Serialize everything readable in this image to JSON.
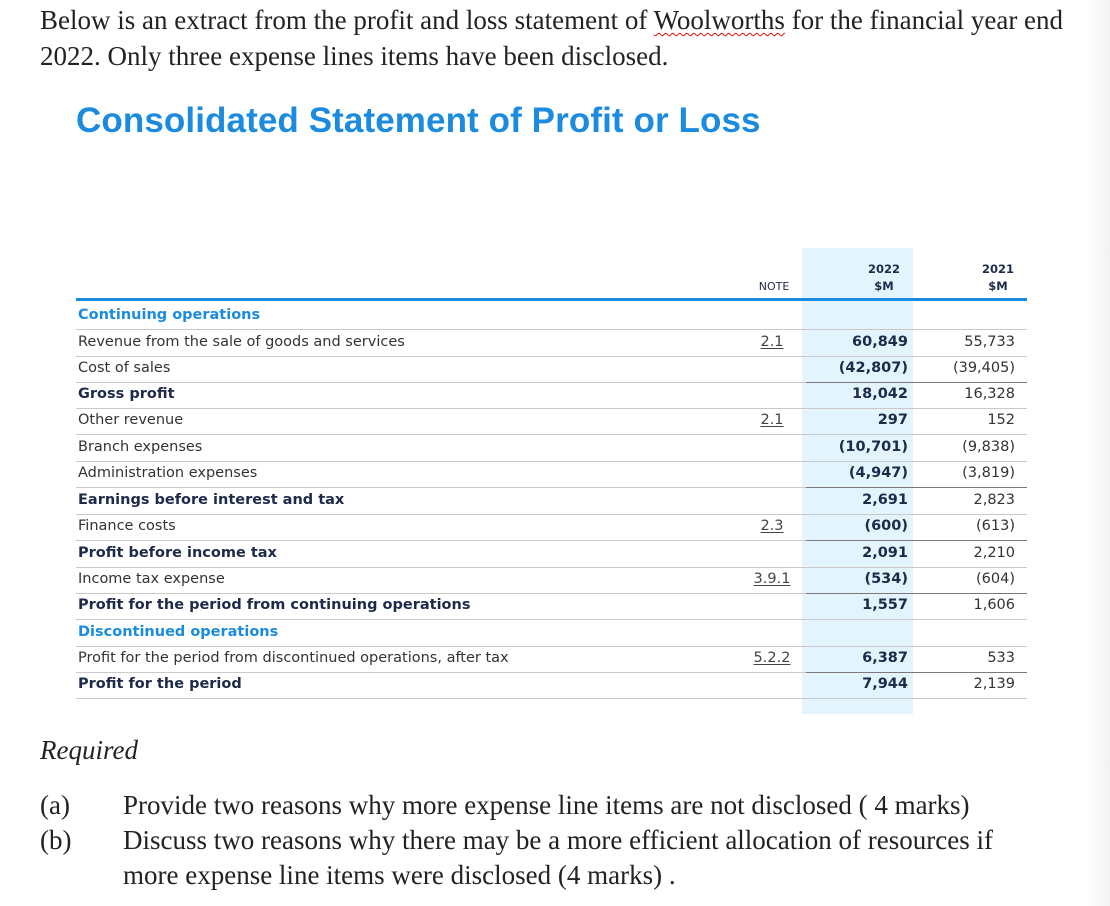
{
  "intro": {
    "before": "Below is an extract from the profit and loss statement of ",
    "company": "Woolworths",
    "after": " for the financial year end 2022. Only three expense lines items have been disclosed."
  },
  "statement": {
    "title": "Consolidated Statement of Profit or Loss",
    "headers": {
      "note": "NOTE",
      "y2022_year": "2022",
      "y2022_unit": "$M",
      "y2021_year": "2021",
      "y2021_unit": "$M"
    },
    "rows": [
      {
        "label": "Continuing operations",
        "note": "",
        "v2022": "",
        "v2021": ""
      },
      {
        "label": "Revenue from the sale of goods and services",
        "note": "2.1",
        "v2022": "60,849",
        "v2021": "55,733"
      },
      {
        "label": "Cost of sales",
        "note": "",
        "v2022": "(42,807)",
        "v2021": "(39,405)"
      },
      {
        "label": "Gross profit",
        "note": "",
        "v2022": "18,042",
        "v2021": "16,328"
      },
      {
        "label": "Other revenue",
        "note": "2.1",
        "v2022": "297",
        "v2021": "152"
      },
      {
        "label": "Branch expenses",
        "note": "",
        "v2022": "(10,701)",
        "v2021": "(9,838)"
      },
      {
        "label": "Administration expenses",
        "note": "",
        "v2022": "(4,947)",
        "v2021": "(3,819)"
      },
      {
        "label": "Earnings before interest and tax",
        "note": "",
        "v2022": "2,691",
        "v2021": "2,823"
      },
      {
        "label": "Finance costs",
        "note": "2.3",
        "v2022": "(600)",
        "v2021": "(613)"
      },
      {
        "label": "Profit before income tax",
        "note": "",
        "v2022": "2,091",
        "v2021": "2,210"
      },
      {
        "label": "Income tax expense",
        "note": "3.9.1",
        "v2022": "(534)",
        "v2021": "(604)"
      },
      {
        "label": "Profit for the period from continuing operations",
        "note": "",
        "v2022": "1,557",
        "v2021": "1,606"
      },
      {
        "label": "Discontinued operations",
        "note": "",
        "v2022": "",
        "v2021": ""
      },
      {
        "label": "Profit for the period from discontinued operations, after tax",
        "note": "5.2.2",
        "v2022": "6,387",
        "v2021": "533"
      },
      {
        "label": "Profit for the period",
        "note": "",
        "v2022": "7,944",
        "v2021": "2,139"
      }
    ]
  },
  "required": {
    "heading": "Required",
    "questions": [
      {
        "letter": "(a)",
        "text": "Provide two reasons why more expense line items are not disclosed ( 4 marks)"
      },
      {
        "letter": "(b)",
        "text": "Discuss two reasons why there may be a  more efficient allocation of resources if more expense line items were disclosed (4 marks) ."
      }
    ]
  }
}
